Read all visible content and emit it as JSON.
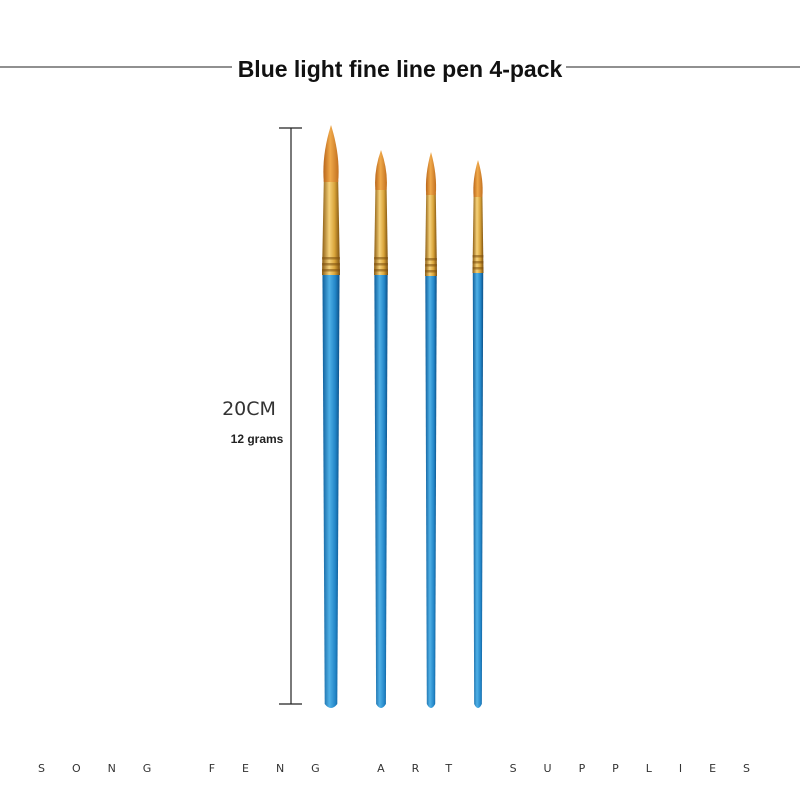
{
  "header": {
    "title": "Blue light fine line pen 4-pack"
  },
  "dimensions": {
    "length": "20CM",
    "weight": "12 grams"
  },
  "footer": {
    "brand": "SONG FENG ART SUPPLIES"
  }
}
